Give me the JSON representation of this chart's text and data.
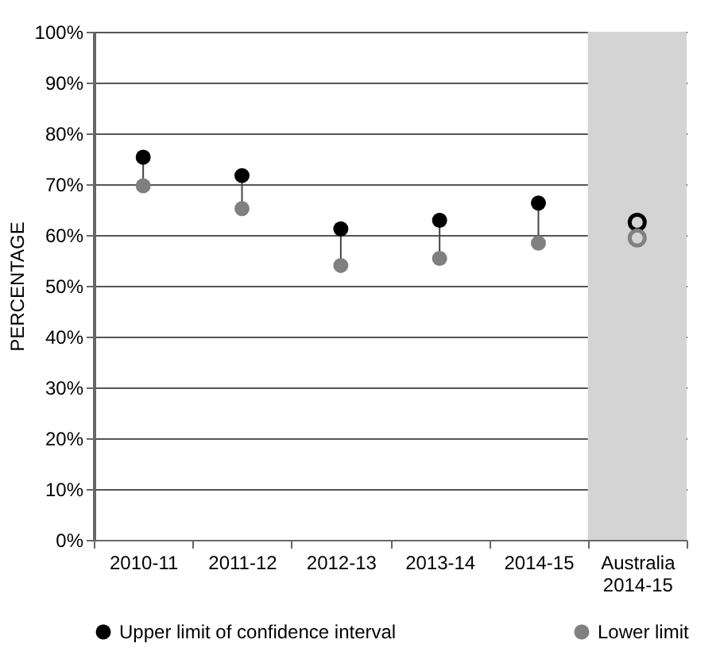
{
  "chart_data": {
    "type": "scatter",
    "ylabel": "PERCENTAGE",
    "categories": [
      "2010-11",
      "2011-12",
      "2012-13",
      "2013-14",
      "2014-15",
      "Australia 2014-15"
    ],
    "series": [
      {
        "name": "Upper limit of confidence interval",
        "color": "#000000",
        "values": [
          75.3,
          71.7,
          61.2,
          62.9,
          66.3,
          62.5
        ]
      },
      {
        "name": "Lower limit",
        "color": "#808080",
        "values": [
          69.7,
          65.2,
          54.0,
          55.4,
          58.4,
          59.4
        ]
      }
    ],
    "ylim": [
      0,
      100
    ],
    "yticks": [
      {
        "value": 0,
        "label": "0%"
      },
      {
        "value": 10,
        "label": "10%"
      },
      {
        "value": 20,
        "label": "20%"
      },
      {
        "value": 30,
        "label": "30%"
      },
      {
        "value": 40,
        "label": "40%"
      },
      {
        "value": 50,
        "label": "50%"
      },
      {
        "value": 60,
        "label": "60%"
      },
      {
        "value": 70,
        "label": "70%"
      },
      {
        "value": 80,
        "label": "80%"
      },
      {
        "value": 90,
        "label": "90%"
      },
      {
        "value": 100,
        "label": "100%"
      }
    ],
    "bands": [
      {
        "axis": "x",
        "from": "Australia 2014-15",
        "to": "Australia 2014-15",
        "color": "#d4d4d4"
      }
    ],
    "grid": "y",
    "legend": "bottom",
    "marker": "circle"
  }
}
